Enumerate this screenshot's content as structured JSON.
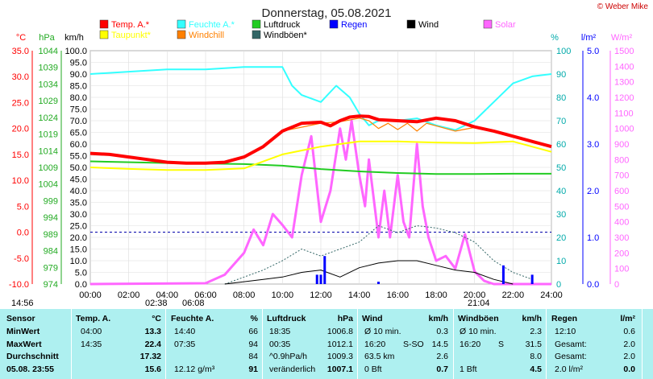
{
  "title": "Donnerstag, 05.08.2021",
  "copyright": "© Weber Mike",
  "legend": [
    {
      "label": "Temp. A.*",
      "color": "#ff0000"
    },
    {
      "label": "Feuchte A.*",
      "color": "#33ffff"
    },
    {
      "label": "Luftdruck",
      "color": "#22cc22"
    },
    {
      "label": "Regen",
      "color": "#0000ff"
    },
    {
      "label": "Wind",
      "color": "#000000"
    },
    {
      "label": "Solar",
      "color": "#ff66ff"
    },
    {
      "label": "Taupunkt*",
      "color": "#ffff00"
    },
    {
      "label": "Windchill",
      "color": "#ff8000"
    },
    {
      "label": "Windböen*",
      "color": "#336666"
    }
  ],
  "axis_units": {
    "c": "°C",
    "hpa": "hPa",
    "kmh": "km/h",
    "pct": "%",
    "lm2": "l/m²",
    "wm2": "W/m²"
  },
  "ticks": {
    "c": [
      "35.0",
      "30.0",
      "25.0",
      "20.0",
      "15.0",
      "10.0",
      "5.0",
      "0.0",
      "-5.0",
      "-10.0"
    ],
    "hpa": [
      "1044",
      "1039",
      "1034",
      "1029",
      "1024",
      "1019",
      "1014",
      "1009",
      "1004",
      "999",
      "994",
      "989",
      "984",
      "979",
      "974"
    ],
    "kmh": [
      "100.0",
      "95.0",
      "90.0",
      "85.0",
      "80.0",
      "75.0",
      "70.0",
      "65.0",
      "60.0",
      "55.0",
      "50.0",
      "45.0",
      "40.0",
      "35.0",
      "30.0",
      "25.0",
      "20.0",
      "15.0",
      "10.0",
      "5.0",
      "0.0"
    ],
    "pct": [
      "100",
      "90",
      "80",
      "70",
      "60",
      "50",
      "40",
      "30",
      "20",
      "10",
      "0"
    ],
    "lm2": [
      "5.0",
      "4.0",
      "3.0",
      "2.0",
      "1.0",
      "0.0"
    ],
    "wm2": [
      "1500",
      "1400",
      "1300",
      "1200",
      "1100",
      "1000",
      "900",
      "800",
      "700",
      "600",
      "500",
      "400",
      "300",
      "200",
      "100",
      "0"
    ],
    "x": [
      "00:00",
      "02:00",
      "04:00",
      "06:00",
      "08:00",
      "10:00",
      "12:00",
      "14:00",
      "16:00",
      "18:00",
      "20:00",
      "22:00",
      "24:00"
    ]
  },
  "sun_marks": [
    {
      "label": "14:56"
    },
    {
      "label": "02:38"
    },
    {
      "label": "06:08"
    },
    {
      "label": "21:04"
    }
  ],
  "chart_data": {
    "type": "line",
    "title": "Donnerstag, 05.08.2021",
    "x_unit": "hour",
    "series": [
      {
        "name": "Temp. A.*",
        "unit": "°C",
        "color": "#ff0000",
        "x": [
          0,
          1,
          2,
          3,
          4,
          5,
          6,
          7,
          8,
          9,
          10,
          11,
          12,
          12.5,
          13,
          13.5,
          14,
          14.5,
          15,
          16,
          17,
          18,
          19,
          20,
          21,
          22,
          23,
          24
        ],
        "values": [
          15.2,
          15,
          14.5,
          14,
          13.5,
          13.3,
          13.3,
          13.5,
          14.5,
          16.5,
          19.5,
          21,
          21.2,
          20.5,
          21.5,
          22.2,
          22.4,
          22.3,
          21.7,
          21.5,
          21.3,
          22,
          21.5,
          20.3,
          19.5,
          18.5,
          17.5,
          16.5
        ]
      },
      {
        "name": "Taupunkt*",
        "unit": "°C",
        "color": "#ffff00",
        "x": [
          0,
          2,
          4,
          6,
          8,
          10,
          12,
          14,
          16,
          18,
          20,
          22,
          24
        ],
        "values": [
          12.5,
          12.2,
          12,
          12,
          12.3,
          15,
          16.5,
          17.5,
          17.5,
          17.3,
          17.2,
          17.5,
          15.5
        ]
      },
      {
        "name": "Windchill",
        "unit": "°C",
        "color": "#ff8000",
        "x": [
          10,
          12,
          13,
          14,
          14.5,
          15,
          15.5,
          16,
          16.5,
          17,
          17.5,
          18,
          19,
          20
        ],
        "values": [
          19.5,
          21,
          21.3,
          22,
          21.5,
          20,
          21,
          19.8,
          21,
          19.5,
          21,
          20.5,
          19.5,
          20.2
        ]
      },
      {
        "name": "Feuchte A.*",
        "unit": "%",
        "color": "#33ffff",
        "x": [
          0,
          2,
          4,
          6,
          8,
          10,
          10.5,
          11,
          12,
          12.8,
          13.5,
          14,
          14.5,
          15,
          16,
          17,
          18,
          19,
          20,
          21,
          22,
          23,
          24
        ],
        "values": [
          90,
          91,
          92,
          92,
          93,
          93,
          85,
          81,
          78,
          85,
          80,
          73,
          68,
          70,
          70,
          71,
          68,
          66,
          70,
          78,
          86,
          89,
          90
        ]
      },
      {
        "name": "Luftdruck",
        "unit": "hPa",
        "color": "#22cc22",
        "x": [
          0,
          4,
          8,
          10,
          12,
          14,
          16,
          18,
          20,
          22,
          24
        ],
        "values": [
          1010.8,
          1010.3,
          1010,
          1009.5,
          1008.5,
          1007.8,
          1007.3,
          1007,
          1007,
          1007.1,
          1007.1
        ]
      },
      {
        "name": "Solar",
        "unit": "W/m²",
        "color": "#ff66ff",
        "x": [
          0,
          6,
          7,
          8,
          8.5,
          9,
          9.5,
          10,
          10.5,
          11,
          11.5,
          12,
          12.5,
          13,
          13.3,
          13.6,
          14,
          14.3,
          14.5,
          15,
          15.3,
          15.6,
          16,
          16.3,
          16.6,
          17,
          17.3,
          17.6,
          18,
          18.5,
          19,
          19.5,
          20,
          20.5,
          21,
          24
        ],
        "values": [
          0,
          5,
          60,
          200,
          350,
          250,
          450,
          380,
          300,
          700,
          950,
          400,
          600,
          1000,
          800,
          1050,
          700,
          500,
          800,
          300,
          600,
          300,
          700,
          400,
          300,
          900,
          500,
          300,
          150,
          180,
          100,
          320,
          80,
          20,
          0,
          0
        ]
      },
      {
        "name": "Wind",
        "unit": "km/h",
        "color": "#000000",
        "x": [
          7,
          8,
          9,
          10,
          11,
          12,
          13,
          14,
          15,
          16,
          17,
          18,
          19,
          20,
          21,
          22
        ],
        "values": [
          0,
          1,
          2,
          3,
          5,
          6,
          3,
          7,
          9,
          10,
          10,
          8,
          6,
          5,
          2,
          0
        ]
      },
      {
        "name": "Windböen*",
        "unit": "km/h",
        "color": "#336666",
        "x": [
          7,
          8,
          9,
          10,
          11,
          12,
          13,
          14,
          15,
          16,
          17,
          18,
          19,
          20,
          21,
          22,
          23
        ],
        "values": [
          0,
          3,
          6,
          10,
          15,
          12,
          15,
          18,
          25,
          22,
          25,
          24,
          22,
          18,
          10,
          5,
          2
        ]
      },
      {
        "name": "Regen",
        "unit": "l/m²",
        "color": "#0000ff",
        "x": [
          11.8,
          12,
          12.2,
          15,
          21.5,
          23
        ],
        "values": [
          0.2,
          0.2,
          0.6,
          0.05,
          0.4,
          0.2
        ]
      }
    ],
    "ylim": {
      "c": [
        -10,
        35
      ],
      "hpa": [
        974,
        1044
      ],
      "kmh": [
        0,
        100
      ],
      "pct": [
        0,
        100
      ],
      "lm2": [
        0,
        5
      ],
      "wm2": [
        0,
        1500
      ]
    }
  },
  "table": {
    "headers": [
      "Sensor",
      "Temp. A.",
      "°C",
      "Feuchte A.",
      "%",
      "Luftdruck",
      "hPa",
      "Wind",
      "km/h",
      "Windböen",
      "km/h",
      "Regen",
      "l/m²"
    ],
    "rows": [
      {
        "name": "MinWert",
        "t_time": "04:00",
        "t_val": "13.3",
        "h_time": "14:40",
        "h_val": "66",
        "p_time": "18:35",
        "p_val": "1006.8",
        "w_label": "Ø 10 min.",
        "w_val": "0.3",
        "g_label": "Ø 10 min.",
        "g_val": "2.3",
        "r_label": "12:10",
        "r_val": "0.6"
      },
      {
        "name": "MaxWert",
        "t_time": "14:35",
        "t_val": "22.4",
        "h_time": "07:35",
        "h_val": "94",
        "p_time": "00:35",
        "p_val": "1012.1",
        "w_label": "16:20",
        "w_dir": "S-SO",
        "w_val": "14.5",
        "g_label": "16:20",
        "g_dir": "S",
        "g_val": "31.5",
        "r_label": "Gesamt:",
        "r_val": "2.0"
      },
      {
        "name": "Durchschnitt",
        "t_time": "",
        "t_val": "17.32",
        "h_time": "",
        "h_val": "84",
        "p_time": "^0.9hPa/h",
        "p_val": "1009.3",
        "w_label": "63.5 km",
        "w_val": "2.6",
        "g_label": "",
        "g_val": "8.0",
        "r_label": "Gesamt:",
        "r_val": "2.0"
      },
      {
        "name": "05.08. 23:55",
        "t_time": "",
        "t_val": "15.6",
        "h_time": "12.12 g/m³",
        "h_val": "91",
        "p_time": "veränderlich",
        "p_val": "1007.1",
        "w_label": "0 Bft",
        "w_val": "0.7",
        "g_label": "1 Bft",
        "g_val": "4.5",
        "r_label": "2.0 l/m²",
        "r_val": "0.0"
      }
    ]
  }
}
